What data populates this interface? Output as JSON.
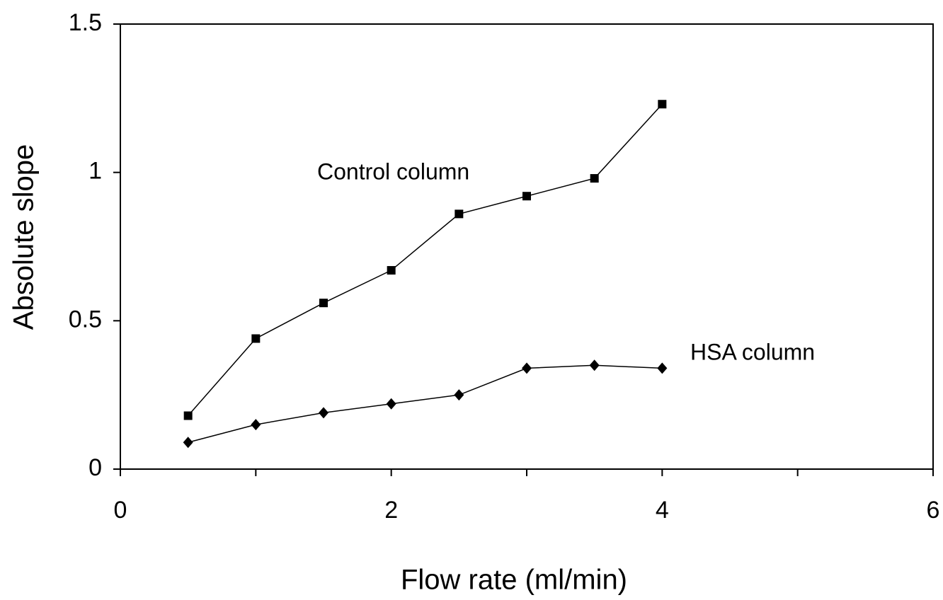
{
  "chart_data": {
    "type": "line",
    "x_label": "Flow rate (ml/min)",
    "y_label": "Absolute slope",
    "x": [
      0.5,
      1,
      1.5,
      2,
      2.5,
      3,
      3.5,
      4
    ],
    "series": [
      {
        "name": "Control column",
        "color": "#000000",
        "marker": "square",
        "values": [
          0.18,
          0.44,
          0.56,
          0.67,
          0.86,
          0.92,
          0.98,
          1.23
        ]
      },
      {
        "name": "HSA column",
        "color": "#000000",
        "marker": "diamond",
        "values": [
          0.09,
          0.15,
          0.19,
          0.22,
          0.25,
          0.34,
          0.35,
          0.34
        ]
      }
    ],
    "xlim": [
      0,
      6
    ],
    "xticks": [
      0,
      2,
      4,
      6
    ],
    "ylim": [
      0,
      1.5
    ],
    "yticks": [
      0,
      0.5,
      1,
      1.5
    ]
  }
}
